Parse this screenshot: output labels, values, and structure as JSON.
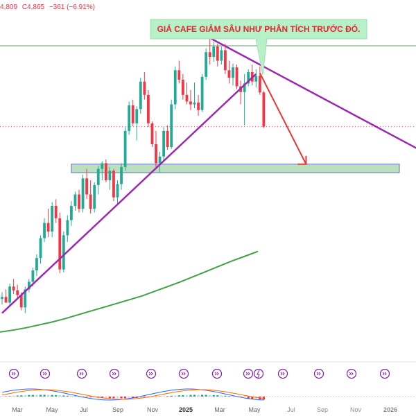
{
  "header": {
    "last_close_fragment": "4,809",
    "close_label": "C4,865",
    "change": "−361 (−6.91%)"
  },
  "annotation": {
    "text": "GIÁ CAFE GIẢM SÂU NHƯ PHÂN TÍCH TRƯỚC ĐÓ."
  },
  "colors": {
    "up": "#22ab94",
    "down": "#f23645",
    "trendline": "#9c27b0",
    "moving_average": "#43a047",
    "support_zone": "#a5d6a7",
    "arrow": "#e53935",
    "callout": "#b8f0c8"
  },
  "chart_data": {
    "type": "candlestick",
    "title": "",
    "x_axis": {
      "labels": [
        "Mar",
        "May",
        "Jul",
        "Sep",
        "Nov",
        "2025",
        "Mar",
        "May",
        "Jul",
        "Sep",
        "Nov",
        "2026"
      ]
    },
    "y_axis": {
      "visible": false,
      "ylim": [
        2400,
        6200
      ]
    },
    "last_close": 4865,
    "change": -361,
    "change_pct": -6.91,
    "candles": [
      [
        3050,
        3120,
        2990,
        3070
      ],
      [
        3070,
        3150,
        3020,
        3010
      ],
      [
        3010,
        3210,
        2980,
        3180
      ],
      [
        3180,
        3260,
        3100,
        3140
      ],
      [
        3140,
        3200,
        3060,
        3090
      ],
      [
        3090,
        3120,
        2930,
        2960
      ],
      [
        2960,
        3180,
        2900,
        3150
      ],
      [
        3150,
        3260,
        3120,
        3230
      ],
      [
        3230,
        3380,
        3180,
        3350
      ],
      [
        3350,
        3520,
        3290,
        3480
      ],
      [
        3480,
        3720,
        3420,
        3690
      ],
      [
        3690,
        3900,
        3650,
        3850
      ],
      [
        3850,
        4000,
        3700,
        3760
      ],
      [
        3760,
        4070,
        3700,
        4030
      ],
      [
        4030,
        4100,
        3850,
        3900
      ],
      [
        3900,
        3960,
        3320,
        3360
      ],
      [
        3360,
        3760,
        3330,
        3720
      ],
      [
        3720,
        3930,
        3650,
        3880
      ],
      [
        3880,
        4080,
        3820,
        4030
      ],
      [
        4030,
        4180,
        3980,
        4150
      ],
      [
        4150,
        4200,
        3960,
        4000
      ],
      [
        4000,
        4360,
        3960,
        4320
      ],
      [
        4320,
        4420,
        4100,
        4150
      ],
      [
        4150,
        4300,
        3950,
        4000
      ],
      [
        4000,
        4280,
        3960,
        4250
      ],
      [
        4250,
        4450,
        4150,
        4420
      ],
      [
        4420,
        4500,
        4300,
        4480
      ],
      [
        4480,
        4520,
        4280,
        4300
      ],
      [
        4300,
        4440,
        4200,
        4400
      ],
      [
        4400,
        4420,
        4080,
        4120
      ],
      [
        4120,
        4300,
        4050,
        4260
      ],
      [
        4260,
        4480,
        4200,
        4440
      ],
      [
        4440,
        4860,
        4400,
        4820
      ],
      [
        4820,
        5130,
        4780,
        5090
      ],
      [
        5090,
        5150,
        4870,
        4900
      ],
      [
        4900,
        5080,
        4720,
        5050
      ],
      [
        5050,
        5380,
        5000,
        5340
      ],
      [
        5340,
        5440,
        5150,
        5200
      ],
      [
        5200,
        5250,
        4860,
        4900
      ],
      [
        4900,
        4920,
        4650,
        4680
      ],
      [
        4680,
        4820,
        4440,
        4480
      ],
      [
        4480,
        4600,
        4380,
        4550
      ],
      [
        4550,
        4860,
        4500,
        4820
      ],
      [
        4820,
        4880,
        4620,
        4650
      ],
      [
        4650,
        5150,
        4630,
        5100
      ],
      [
        5100,
        5500,
        5050,
        5460
      ],
      [
        5460,
        5560,
        5320,
        5360
      ],
      [
        5360,
        5420,
        5150,
        5200
      ],
      [
        5200,
        5330,
        5100,
        5130
      ],
      [
        5130,
        5250,
        5040,
        5100
      ],
      [
        5100,
        5330,
        5060,
        5120
      ],
      [
        5120,
        5200,
        4980,
        5040
      ],
      [
        5040,
        5420,
        5020,
        5390
      ],
      [
        5390,
        5690,
        5360,
        5650
      ],
      [
        5650,
        5820,
        5520,
        5600
      ],
      [
        5600,
        5760,
        5550,
        5710
      ],
      [
        5710,
        5740,
        5500,
        5560
      ],
      [
        5560,
        5710,
        5520,
        5670
      ],
      [
        5670,
        5740,
        5420,
        5460
      ],
      [
        5460,
        5560,
        5320,
        5380
      ],
      [
        5380,
        5530,
        5300,
        5490
      ],
      [
        5490,
        5520,
        5260,
        5290
      ],
      [
        5290,
        5350,
        5100,
        5230
      ],
      [
        5230,
        5420,
        4880,
        5320
      ],
      [
        5320,
        5470,
        5290,
        5440
      ],
      [
        5440,
        5520,
        5300,
        5340
      ],
      [
        5340,
        5470,
        5280,
        5400
      ],
      [
        5400,
        5500,
        5200,
        5226
      ],
      [
        5226,
        5240,
        4850,
        4865
      ]
    ],
    "overlays": {
      "moving_average": {
        "label": "",
        "values": [
          2700,
          2720,
          2745,
          2775,
          2805,
          2840,
          2880,
          2920,
          2960,
          3000,
          3040,
          3080,
          3130,
          3180,
          3230,
          3285,
          3340,
          3395,
          3450,
          3500,
          3550
        ]
      },
      "support_zone": {
        "low": 4380,
        "high": 4470
      },
      "ascending_trendline": {
        "from_candle": 0,
        "from_price": 2900,
        "to_candle": 66,
        "to_price": 5420
      },
      "descending_trendline": {
        "from_candle": 54,
        "from_price": 5800,
        "to_candle": 115,
        "to_price": 4480
      },
      "projection_arrow": {
        "from_candle": 67,
        "from_price": 5430,
        "to_candle": 79,
        "to_price": 4470
      },
      "last_price_line": 4865
    },
    "macd": {
      "visible": true
    }
  }
}
